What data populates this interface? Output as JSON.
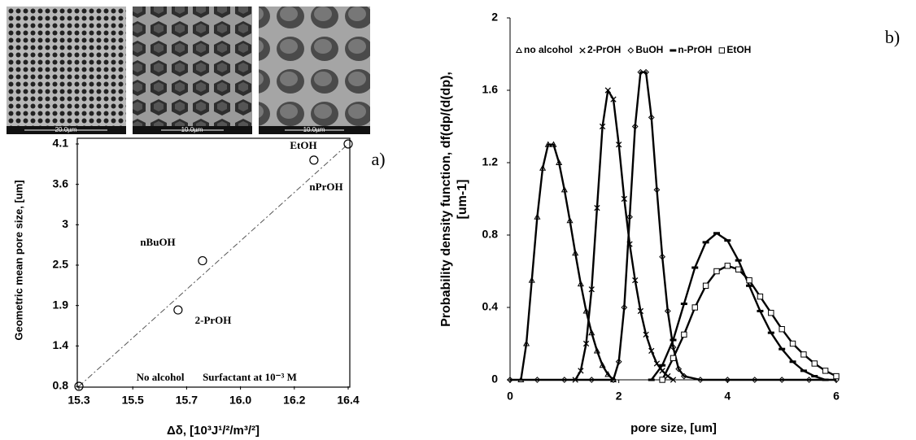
{
  "images": [
    {
      "scale_label": "20.0µm"
    },
    {
      "scale_label": "10.0µm"
    },
    {
      "scale_label": "10.0µm"
    }
  ],
  "chart_data": [
    {
      "type": "scatter",
      "panel_label": "a)",
      "x_label": "Δδ, [10³J¹/²/m³/²]",
      "y_label": [
        "Geometric mean pore size, [um]"
      ],
      "xlim": [
        15.3,
        16.4
      ],
      "ylim": [
        0.8,
        4.1
      ],
      "xticks": [
        15.3,
        {
          "value": 15.52,
          "label": "15.5"
        },
        {
          "value": 15.74,
          "label": "15.7"
        },
        {
          "value": 15.96,
          "label": "16.0"
        },
        {
          "value": 16.18,
          "label": "16.2"
        },
        16.4
      ],
      "yticks": [
        0.8,
        {
          "value": 1.35,
          "label": "1.4"
        },
        1.9,
        {
          "value": 2.45,
          "label": "2.5"
        },
        3.0,
        {
          "value": 3.55,
          "label": "3.6"
        },
        4.1
      ],
      "frame": true,
      "series": [
        {
          "marker": "circle",
          "color": "#000000",
          "x": [
            15.3,
            15.705,
            15.805,
            16.26,
            16.4
          ],
          "values": [
            0.8,
            1.84,
            2.51,
            3.88,
            4.1
          ],
          "point_labels": [
            "No alcohol",
            "2-PrOH",
            "nBuOH",
            "nPrOH",
            "EtOH"
          ]
        }
      ],
      "fit_line": {
        "x": [
          15.3,
          16.4
        ],
        "y": [
          0.8,
          4.1
        ]
      },
      "annotations": [
        "Surfactant at 10⁻³ M"
      ]
    },
    {
      "type": "scatter",
      "panel_label": "b)",
      "x_label": "pore size, [um]",
      "y_label": [
        "Probability density function, df(dp/(d(dp),",
        "[um-1]"
      ],
      "xlim": [
        0,
        6
      ],
      "ylim": [
        0,
        2
      ],
      "xticks": [
        0,
        2,
        4,
        6
      ],
      "yticks": [
        0,
        0.4,
        0.8,
        1.2,
        1.6,
        2
      ],
      "frame": false,
      "legend": "top",
      "series": [
        {
          "name": "no alcohol",
          "marker": "triangle",
          "color": "#000000",
          "x": [
            0.2,
            0.3,
            0.4,
            0.5,
            0.6,
            0.7,
            0.8,
            0.9,
            1.0,
            1.1,
            1.2,
            1.3,
            1.4,
            1.5,
            1.6,
            1.7,
            1.8,
            1.9
          ],
          "values": [
            0,
            0.2,
            0.55,
            0.9,
            1.17,
            1.3,
            1.3,
            1.2,
            1.05,
            0.88,
            0.7,
            0.53,
            0.38,
            0.26,
            0.16,
            0.08,
            0.03,
            0
          ]
        },
        {
          "name": "2-PrOH",
          "marker": "x",
          "color": "#000000",
          "x": [
            1.2,
            1.3,
            1.4,
            1.5,
            1.6,
            1.7,
            1.8,
            1.9,
            2.0,
            2.1,
            2.2,
            2.3,
            2.4,
            2.5,
            2.6,
            2.7,
            2.8,
            2.9,
            3.0
          ],
          "values": [
            0,
            0.05,
            0.2,
            0.5,
            0.95,
            1.4,
            1.6,
            1.55,
            1.3,
            1.0,
            0.75,
            0.55,
            0.38,
            0.25,
            0.16,
            0.09,
            0.05,
            0.02,
            0
          ]
        },
        {
          "name": "BuOH",
          "marker": "diamond",
          "color": "#000000",
          "x": [
            0,
            0.5,
            1.0,
            1.5,
            1.9,
            2.0,
            2.1,
            2.2,
            2.3,
            2.4,
            2.5,
            2.6,
            2.7,
            2.8,
            2.9,
            3.0,
            3.1,
            3.2,
            3.5,
            4.0,
            4.5,
            5.0,
            5.5,
            6.0
          ],
          "values": [
            0,
            0,
            0,
            0,
            0,
            0.1,
            0.4,
            0.9,
            1.4,
            1.7,
            1.7,
            1.45,
            1.05,
            0.68,
            0.38,
            0.18,
            0.06,
            0.02,
            0,
            0,
            0,
            0,
            0,
            0
          ]
        },
        {
          "name": "n-PrOH",
          "marker": "dash",
          "color": "#000000",
          "x": [
            2.6,
            2.8,
            3.0,
            3.2,
            3.4,
            3.6,
            3.8,
            4.0,
            4.2,
            4.4,
            4.6,
            4.8,
            5.0,
            5.2,
            5.4,
            5.6,
            5.8
          ],
          "values": [
            0,
            0.08,
            0.22,
            0.42,
            0.62,
            0.76,
            0.81,
            0.77,
            0.66,
            0.52,
            0.38,
            0.26,
            0.17,
            0.1,
            0.05,
            0.02,
            0
          ]
        },
        {
          "name": "EtOH",
          "marker": "square",
          "color": "#000000",
          "x": [
            2.8,
            3.0,
            3.2,
            3.4,
            3.6,
            3.8,
            4.0,
            4.2,
            4.4,
            4.6,
            4.8,
            5.0,
            5.2,
            5.4,
            5.6,
            5.8,
            6.0
          ],
          "values": [
            0,
            0.12,
            0.25,
            0.4,
            0.52,
            0.6,
            0.63,
            0.61,
            0.55,
            0.46,
            0.37,
            0.28,
            0.2,
            0.14,
            0.09,
            0.05,
            0.02
          ]
        }
      ]
    }
  ]
}
